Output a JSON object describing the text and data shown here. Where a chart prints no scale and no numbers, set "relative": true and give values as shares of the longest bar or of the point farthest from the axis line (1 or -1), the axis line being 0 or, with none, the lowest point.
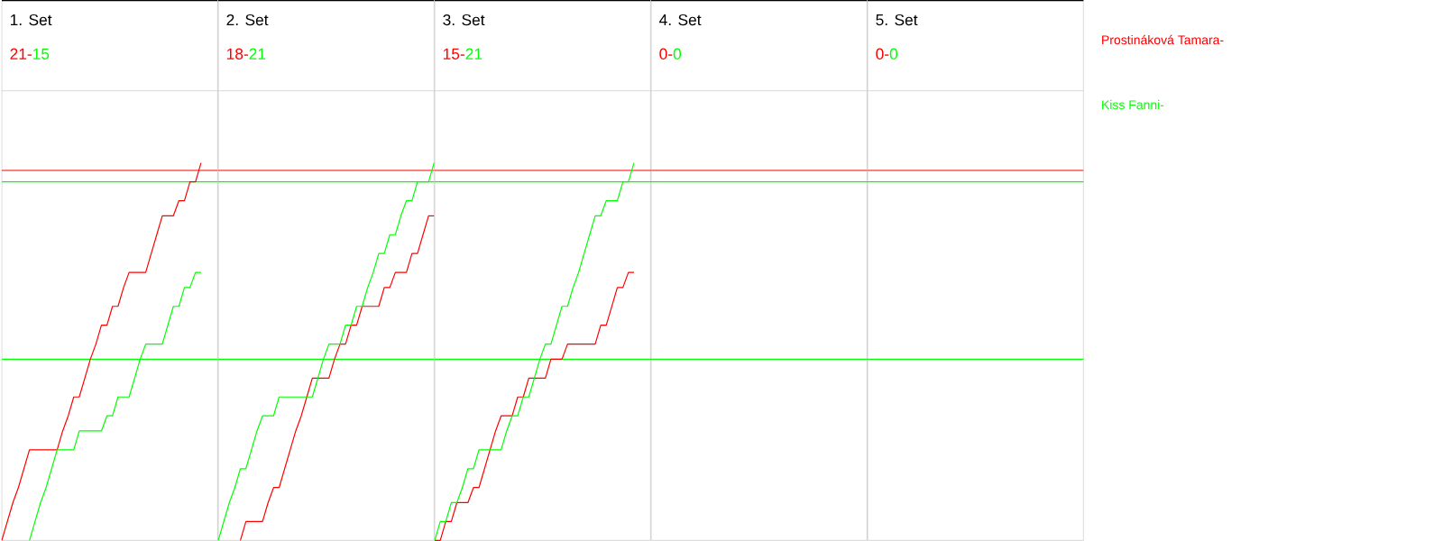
{
  "chart_data": [
    {
      "type": "line",
      "title": "1. Set",
      "annotations": [
        "21-",
        "15"
      ],
      "relative": true,
      "categories": [
        null,
        null,
        null,
        null,
        null,
        null,
        null,
        null,
        null,
        null,
        null,
        null,
        null,
        null,
        null,
        null,
        null,
        null,
        null,
        null,
        null,
        null,
        null,
        null,
        null,
        null,
        null,
        null,
        null,
        null,
        null,
        null,
        null,
        null,
        null,
        null,
        null,
        null,
        null,
        null
      ],
      "series": [
        {
          "name": "Prostináková Tamara-",
          "color": "#ff0000",
          "values": [
            0,
            0.05,
            0.1,
            0.14,
            0.19,
            0.24,
            0.24,
            0.24,
            0.24,
            0.24,
            0.24,
            0.29,
            0.33,
            0.38,
            0.38,
            0.43,
            0.48,
            0.52,
            0.57,
            0.57,
            0.62,
            0.62,
            0.67,
            0.71,
            0.71,
            0.71,
            0.71,
            0.76,
            0.81,
            0.86,
            0.86,
            0.86,
            0.9,
            0.9,
            0.95,
            0.95,
            1,
            null,
            null,
            null
          ]
        },
        {
          "name": "Kiss Fanni-",
          "color": "#00ff00",
          "values": [
            null,
            null,
            null,
            null,
            null,
            0,
            0.05,
            0.1,
            0.14,
            0.19,
            0.24,
            0.24,
            0.24,
            0.24,
            0.29,
            0.29,
            0.29,
            0.29,
            0.29,
            0.33,
            0.33,
            0.38,
            0.38,
            0.38,
            0.43,
            0.48,
            0.52,
            0.52,
            0.52,
            0.52,
            0.57,
            0.62,
            0.62,
            0.67,
            0.67,
            0.71,
            0.71,
            null,
            null,
            null
          ]
        }
      ],
      "ref_lines": [
        {
          "axis": "y",
          "value": 0.48,
          "color": "#00ff00"
        },
        {
          "axis": "y",
          "value": 0.95,
          "color": "#00ff00"
        },
        {
          "axis": "y",
          "value": 0.98,
          "color": "#ff0000"
        }
      ]
    },
    {
      "type": "line",
      "title": "2. Set",
      "annotations": [
        "18-",
        "21"
      ],
      "relative": true,
      "categories": [
        null,
        null,
        null,
        null,
        null,
        null,
        null,
        null,
        null,
        null,
        null,
        null,
        null,
        null,
        null,
        null,
        null,
        null,
        null,
        null,
        null,
        null,
        null,
        null,
        null,
        null,
        null,
        null,
        null,
        null,
        null,
        null,
        null,
        null,
        null,
        null,
        null,
        null,
        null,
        null
      ],
      "series": [
        {
          "color": "#ff0000",
          "values": [
            null,
            null,
            null,
            null,
            0,
            0.05,
            0.05,
            0.05,
            0.05,
            0.1,
            0.14,
            0.14,
            0.19,
            0.24,
            0.29,
            0.33,
            0.38,
            0.43,
            0.43,
            0.43,
            0.43,
            0.48,
            0.52,
            0.52,
            0.57,
            0.57,
            0.62,
            0.62,
            0.62,
            0.62,
            0.67,
            0.67,
            0.71,
            0.71,
            0.71,
            0.76,
            0.76,
            0.81,
            0.86,
            0.86
          ]
        },
        {
          "color": "#00ff00",
          "values": [
            0,
            0.05,
            0.1,
            0.14,
            0.19,
            0.19,
            0.24,
            0.29,
            0.33,
            0.33,
            0.33,
            0.38,
            0.38,
            0.38,
            0.38,
            0.38,
            0.38,
            0.38,
            0.43,
            0.48,
            0.52,
            0.52,
            0.52,
            0.57,
            0.57,
            0.62,
            0.62,
            0.67,
            0.71,
            0.76,
            0.76,
            0.81,
            0.81,
            0.86,
            0.9,
            0.9,
            0.95,
            0.95,
            0.95,
            1
          ]
        }
      ],
      "ref_lines": [
        {
          "axis": "y",
          "value": 0.48,
          "color": "#00ff00"
        },
        {
          "axis": "y",
          "value": 0.95,
          "color": "#00ff00"
        },
        {
          "axis": "y",
          "value": 0.98,
          "color": "#ff0000"
        }
      ]
    },
    {
      "type": "line",
      "title": "3. Set",
      "annotations": [
        "15-",
        "21"
      ],
      "relative": true,
      "categories": [
        null,
        null,
        null,
        null,
        null,
        null,
        null,
        null,
        null,
        null,
        null,
        null,
        null,
        null,
        null,
        null,
        null,
        null,
        null,
        null,
        null,
        null,
        null,
        null,
        null,
        null,
        null,
        null,
        null,
        null,
        null,
        null,
        null,
        null,
        null,
        null,
        null,
        null,
        null,
        null
      ],
      "series": [
        {
          "color": "#ff0000",
          "values": [
            0,
            0,
            0.05,
            0.05,
            0.1,
            0.1,
            0.1,
            0.14,
            0.14,
            0.19,
            0.24,
            0.29,
            0.33,
            0.33,
            0.33,
            0.38,
            0.38,
            0.43,
            0.43,
            0.43,
            0.43,
            0.48,
            0.48,
            0.48,
            0.52,
            0.52,
            0.52,
            0.52,
            0.52,
            0.52,
            0.57,
            0.57,
            0.62,
            0.67,
            0.67,
            0.71,
            0.71,
            null,
            null,
            null
          ]
        },
        {
          "color": "#00ff00",
          "values": [
            0,
            0.05,
            0.05,
            0.1,
            0.1,
            0.14,
            0.19,
            0.19,
            0.24,
            0.24,
            0.24,
            0.24,
            0.24,
            0.29,
            0.33,
            0.33,
            0.38,
            0.38,
            0.43,
            0.48,
            0.52,
            0.52,
            0.57,
            0.62,
            0.62,
            0.67,
            0.71,
            0.76,
            0.81,
            0.86,
            0.86,
            0.9,
            0.9,
            0.9,
            0.95,
            0.95,
            1,
            null,
            null,
            null
          ]
        }
      ],
      "ref_lines": [
        {
          "axis": "y",
          "value": 0.48,
          "color": "#00ff00"
        },
        {
          "axis": "y",
          "value": 0.95,
          "color": "#00ff00"
        },
        {
          "axis": "y",
          "value": 0.98,
          "color": "#ff0000"
        }
      ]
    },
    {
      "type": "other",
      "title": "4. Set",
      "annotations": [
        "0-",
        "0"
      ],
      "series": [
        {
          "color": "#ff0000"
        },
        {
          "color": "#00ff00"
        }
      ]
    },
    {
      "type": "other",
      "title": "5. Set",
      "annotations": [
        "0-",
        "0"
      ],
      "series": [
        {
          "color": "#ff0000"
        },
        {
          "color": "#00ff00"
        }
      ]
    }
  ]
}
